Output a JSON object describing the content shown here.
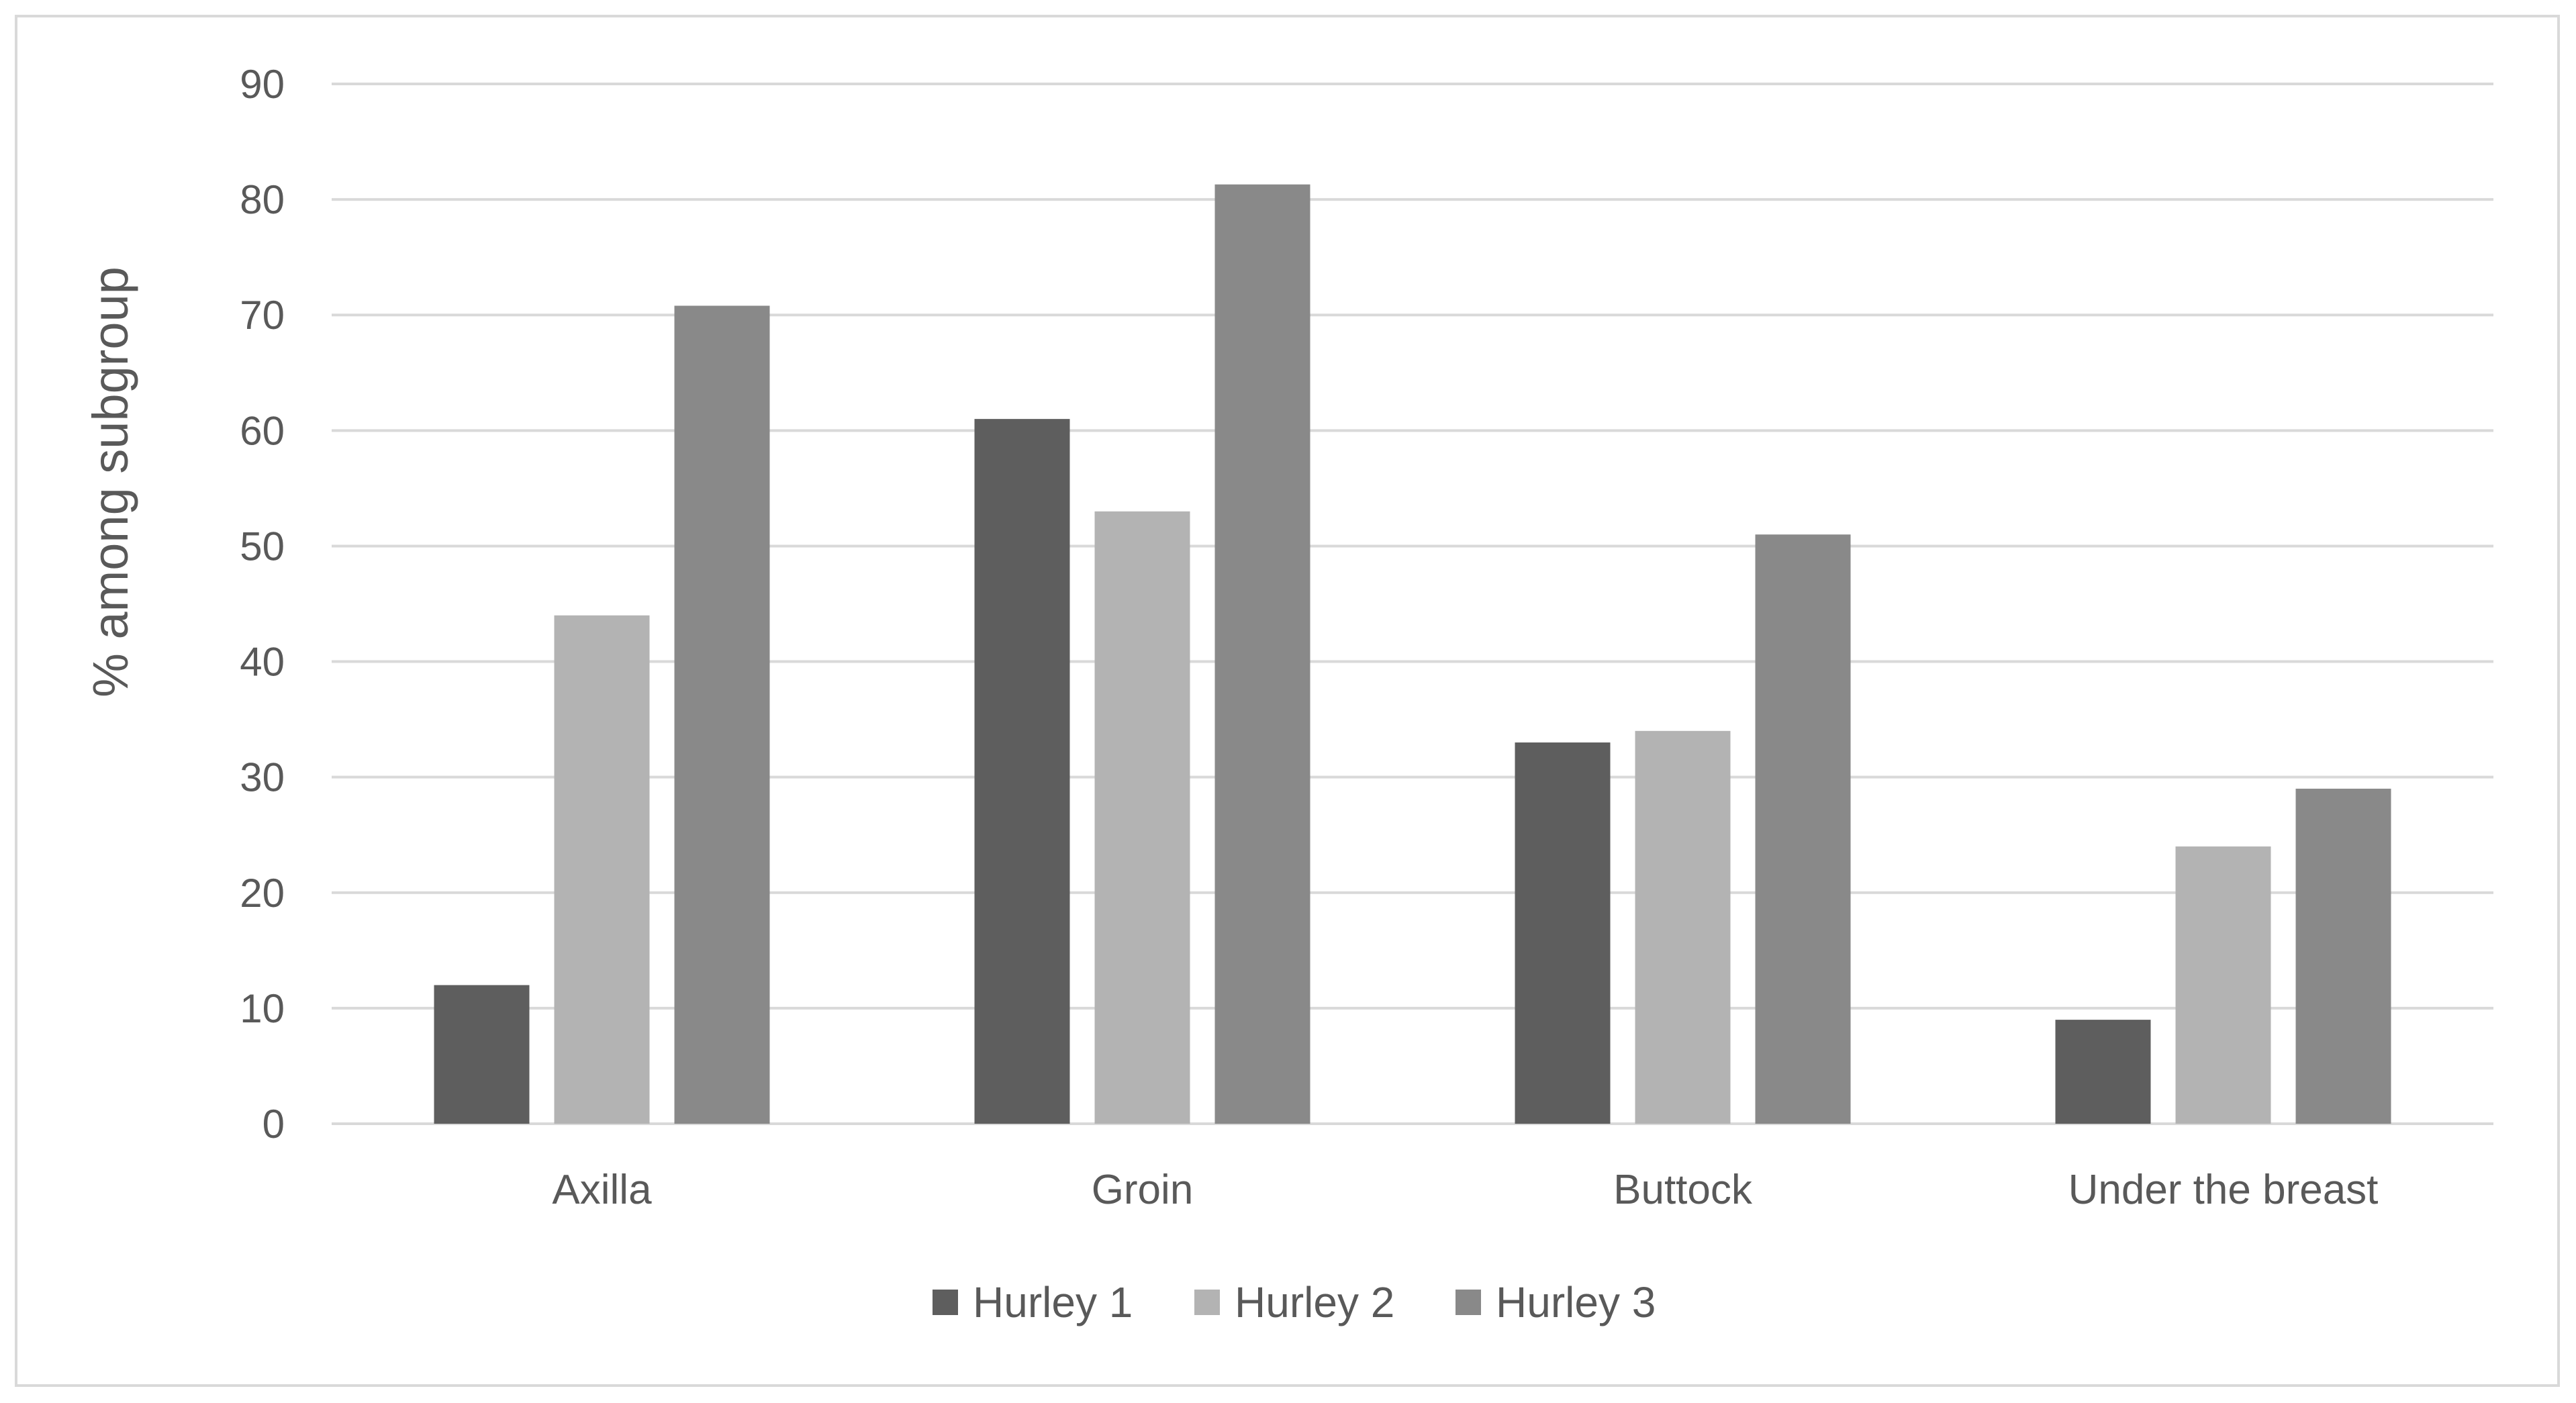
{
  "chart_data": {
    "type": "bar",
    "title": "",
    "xlabel": "",
    "ylabel": "% among subgroup",
    "ylim": [
      0,
      90
    ],
    "yticks": [
      0,
      10,
      20,
      30,
      40,
      50,
      60,
      70,
      80,
      90
    ],
    "yticks_labels": [
      "0",
      "10",
      "20",
      "30",
      "40",
      "50",
      "60",
      "70",
      "80",
      "90"
    ],
    "grid": true,
    "legend_position": "bottom",
    "categories": [
      "Axilla",
      "Groin",
      "Buttock",
      "Under the breast"
    ],
    "series": [
      {
        "name": "Hurley 1",
        "color": "#5e5e5e",
        "values": [
          12,
          61,
          33,
          9
        ]
      },
      {
        "name": "Hurley 2",
        "color": "#b3b3b3",
        "values": [
          44,
          53,
          34,
          24
        ]
      },
      {
        "name": "Hurley 3",
        "color": "#898989",
        "values": [
          70.8,
          81.3,
          51,
          29
        ]
      }
    ]
  }
}
